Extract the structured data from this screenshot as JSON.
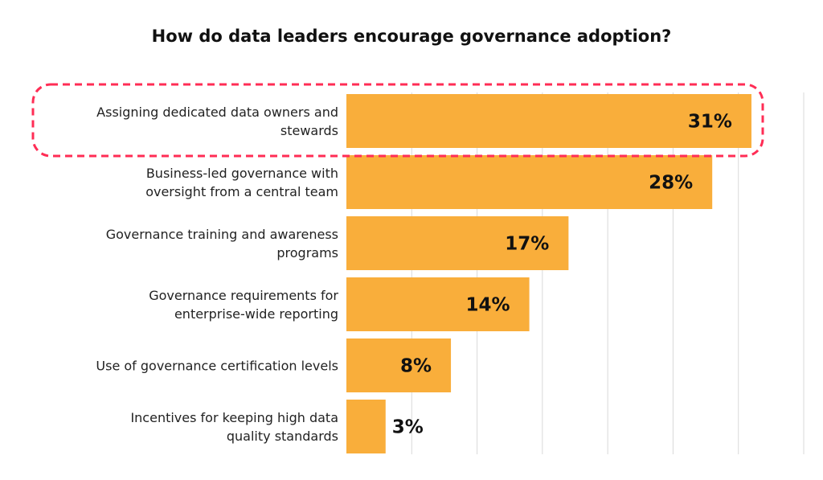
{
  "chart_data": {
    "type": "bar",
    "orientation": "horizontal",
    "title": "How do data leaders encourage governance adoption?",
    "categories": [
      [
        "Assigning dedicated data owners and",
        "stewards"
      ],
      [
        "Business-led governance with",
        "oversight from a central team"
      ],
      [
        "Governance training and awareness",
        "programs"
      ],
      [
        "Governance requirements for",
        "enterprise-wide reporting"
      ],
      [
        "Use of governance certification levels"
      ],
      [
        "Incentives for keeping high data",
        "quality standards"
      ]
    ],
    "values": [
      31,
      28,
      17,
      14,
      8,
      3
    ],
    "value_labels": [
      "31%",
      "28%",
      "17%",
      "14%",
      "8%",
      "3%"
    ],
    "xlim": [
      0,
      35
    ],
    "grid": true,
    "grid_step": 5,
    "highlighted_category_index": 0,
    "colors": {
      "bar": "#F9AE3B",
      "highlight": "#FF2D55",
      "grid": "#D9D9D9"
    }
  }
}
